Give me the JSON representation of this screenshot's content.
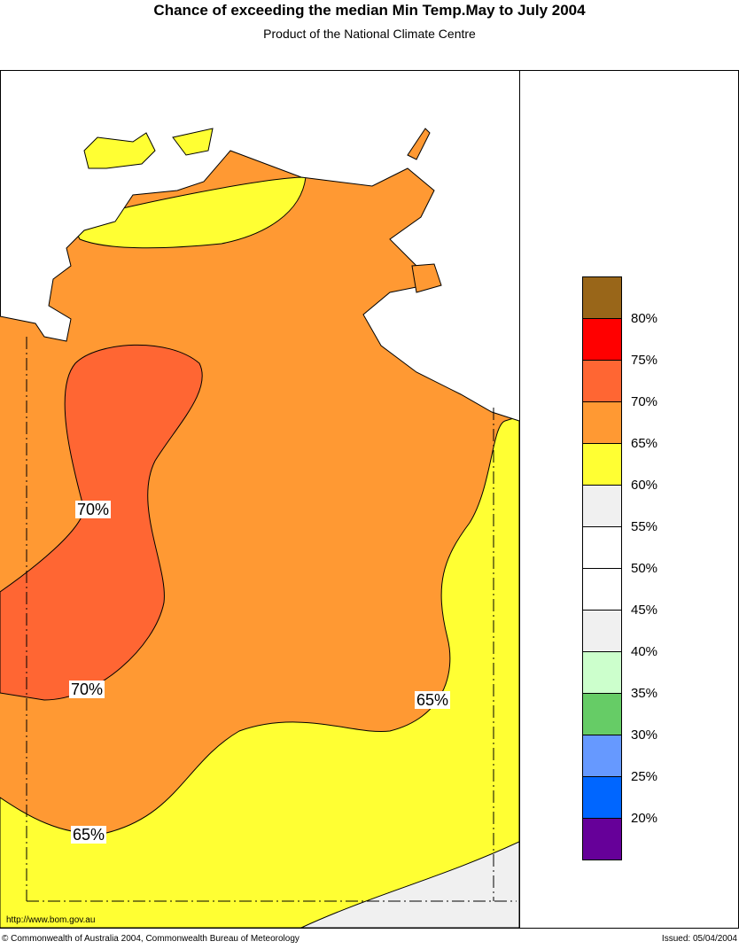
{
  "header": {
    "title": "Chance of exceeding the median Min Temp.May to July 2004",
    "subtitle": "Product of the National Climate Centre"
  },
  "legend": {
    "colors": [
      "#996619",
      "#ff0000",
      "#ff6633",
      "#ff9933",
      "#ffff33",
      "#f0f0f0",
      "#ffffff",
      "#ffffff",
      "#f0f0f0",
      "#ccffcc",
      "#66cc66",
      "#6699ff",
      "#0066ff",
      "#660099"
    ],
    "labels": [
      "80%",
      "75%",
      "70%",
      "65%",
      "60%",
      "55%",
      "50%",
      "45%",
      "40%",
      "35%",
      "30%",
      "25%",
      "20%"
    ]
  },
  "contour_labels": [
    "70%",
    "70%",
    "65%",
    "65%"
  ],
  "footer": {
    "url": "http://www.bom.gov.au",
    "copyright": "© Commonwealth of Australia 2004, Commonwealth Bureau of Meteorology",
    "issued": "Issued: 05/04/2004"
  }
}
